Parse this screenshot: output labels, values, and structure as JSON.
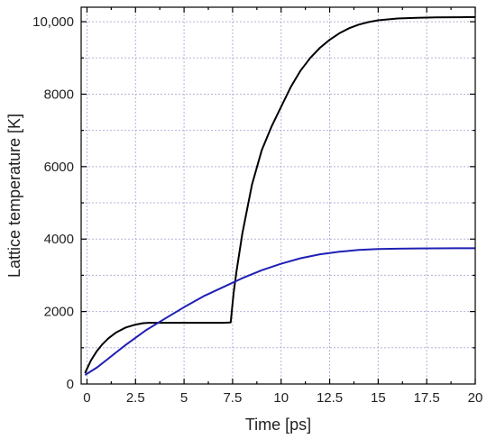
{
  "chart_data": {
    "type": "line",
    "title": "",
    "xlabel": "Time [ps]",
    "ylabel": "Lattice temperature [K]",
    "xlim": [
      -0.3,
      20
    ],
    "ylim": [
      0,
      10400
    ],
    "x_ticks": [
      0,
      2.5,
      5,
      7.5,
      10,
      12.5,
      15,
      17.5,
      20
    ],
    "x_tick_labels": [
      "0",
      "2.5",
      "5",
      "7.5",
      "10",
      "12.5",
      "15",
      "17.5",
      "20"
    ],
    "y_ticks": [
      0,
      2000,
      4000,
      6000,
      8000,
      10000
    ],
    "y_tick_labels": [
      "0",
      "2000",
      "4000",
      "6000",
      "8000",
      "10,000"
    ],
    "grid": true,
    "legend": "none",
    "series": [
      {
        "color": "#000000",
        "points": [
          [
            -0.1,
            300
          ],
          [
            0.0,
            420
          ],
          [
            0.2,
            650
          ],
          [
            0.5,
            900
          ],
          [
            0.8,
            1100
          ],
          [
            1.1,
            1260
          ],
          [
            1.5,
            1420
          ],
          [
            2.0,
            1560
          ],
          [
            2.5,
            1640
          ],
          [
            2.9,
            1680
          ],
          [
            3.2,
            1690
          ],
          [
            5.0,
            1690
          ],
          [
            7.0,
            1690
          ],
          [
            7.4,
            1700
          ],
          [
            7.55,
            2500
          ],
          [
            7.7,
            3100
          ],
          [
            8.0,
            4150
          ],
          [
            8.5,
            5500
          ],
          [
            9.0,
            6450
          ],
          [
            9.5,
            7100
          ],
          [
            10.0,
            7650
          ],
          [
            10.5,
            8200
          ],
          [
            11.0,
            8650
          ],
          [
            11.5,
            9000
          ],
          [
            12.0,
            9280
          ],
          [
            12.5,
            9500
          ],
          [
            13.0,
            9680
          ],
          [
            13.5,
            9820
          ],
          [
            14.0,
            9920
          ],
          [
            14.5,
            9990
          ],
          [
            15.0,
            10040
          ],
          [
            16.0,
            10090
          ],
          [
            17.0,
            10110
          ],
          [
            18.0,
            10120
          ],
          [
            19.0,
            10125
          ],
          [
            20.0,
            10130
          ]
        ]
      },
      {
        "color": "#1f1fb4",
        "points": [
          [
            -0.1,
            250
          ],
          [
            0.5,
            450
          ],
          [
            1.0,
            660
          ],
          [
            1.5,
            870
          ],
          [
            2.0,
            1080
          ],
          [
            3.0,
            1470
          ],
          [
            4.0,
            1800
          ],
          [
            5.0,
            2120
          ],
          [
            6.0,
            2420
          ],
          [
            7.0,
            2670
          ],
          [
            8.0,
            2920
          ],
          [
            9.0,
            3140
          ],
          [
            10.0,
            3320
          ],
          [
            11.0,
            3470
          ],
          [
            12.0,
            3580
          ],
          [
            13.0,
            3650
          ],
          [
            14.0,
            3700
          ],
          [
            15.0,
            3725
          ],
          [
            16.0,
            3735
          ],
          [
            17.0,
            3742
          ],
          [
            18.0,
            3745
          ],
          [
            19.0,
            3746
          ],
          [
            20.0,
            3747
          ]
        ]
      }
    ]
  }
}
